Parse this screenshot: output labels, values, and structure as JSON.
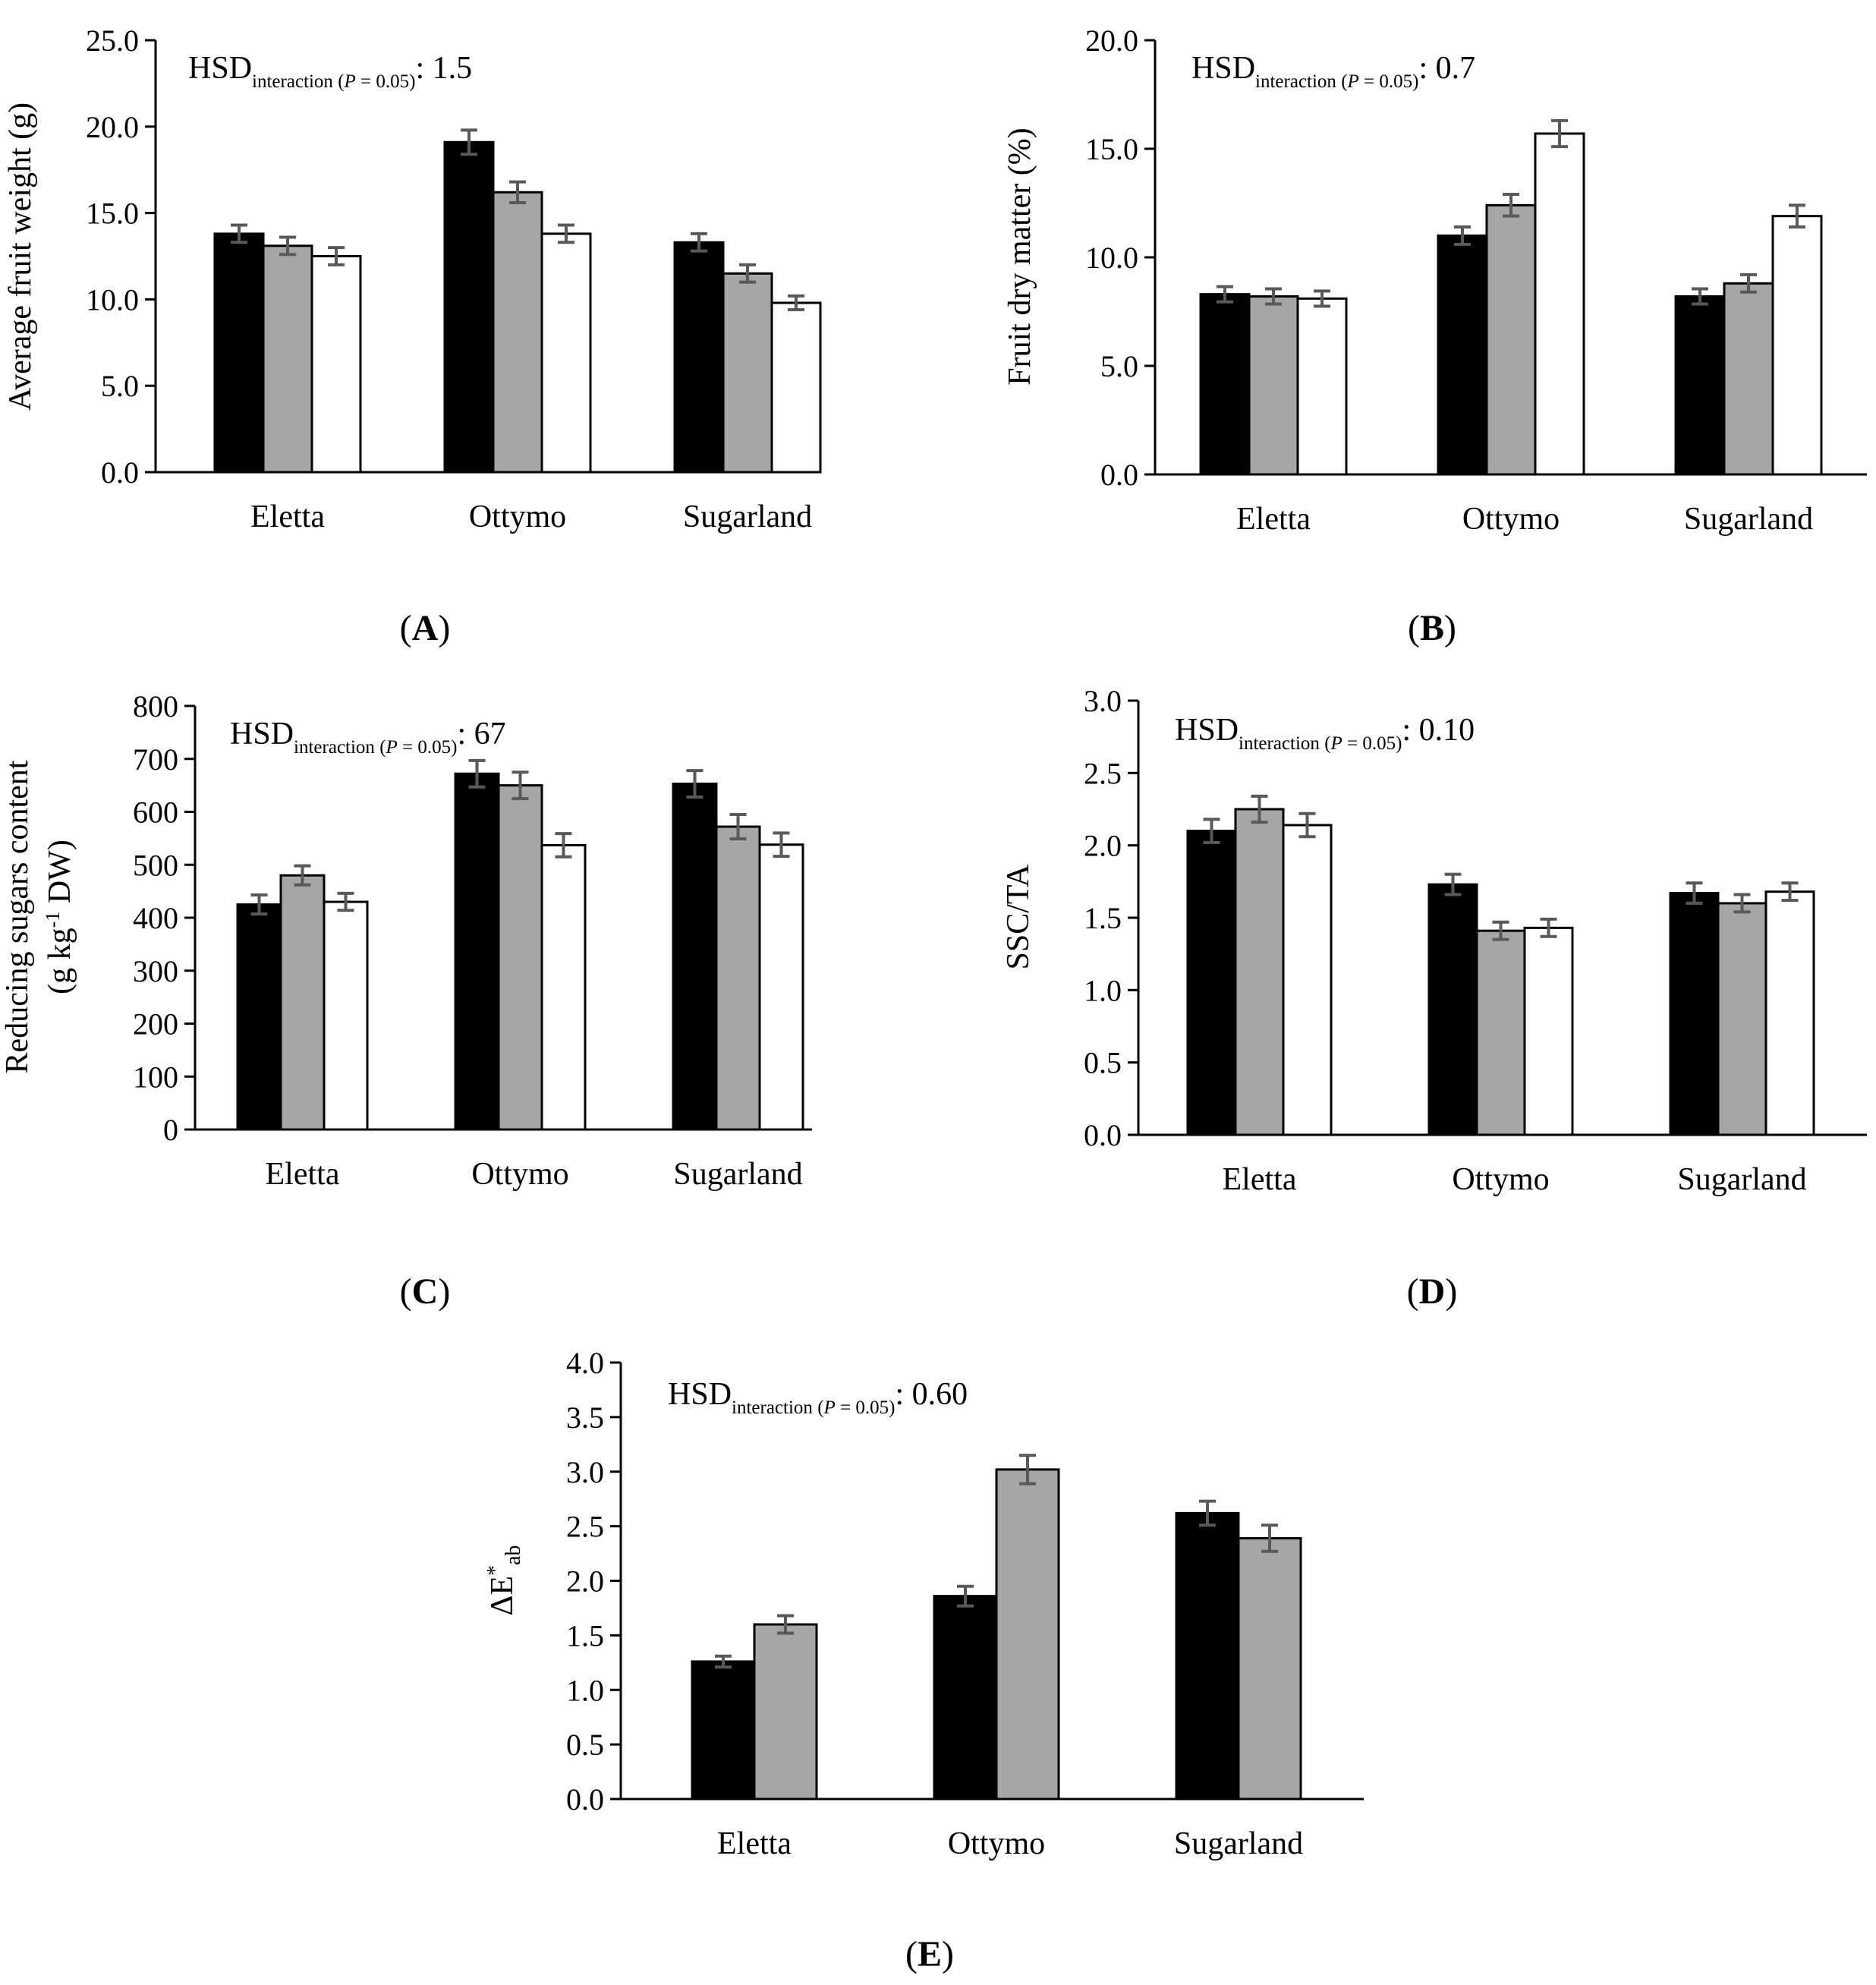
{
  "colors": {
    "series1": "#000000",
    "series2": "#a6a6a6",
    "series3": "#ffffff",
    "error": "#595959",
    "axis": "#000000"
  },
  "chart_data": [
    {
      "type": "bar",
      "panel": "A",
      "categories": [
        "Eletta",
        "Ottymo",
        "Sugarland"
      ],
      "series": [
        {
          "name": "series 1",
          "color": "#000000",
          "values": [
            13.8,
            19.1,
            13.3
          ],
          "errors": [
            0.5,
            0.7,
            0.5
          ]
        },
        {
          "name": "series 2",
          "color": "#a6a6a6",
          "values": [
            13.1,
            16.2,
            11.5
          ],
          "errors": [
            0.5,
            0.6,
            0.5
          ]
        },
        {
          "name": "series 3",
          "color": "#ffffff",
          "values": [
            12.5,
            13.8,
            9.8
          ],
          "errors": [
            0.5,
            0.5,
            0.4
          ]
        }
      ],
      "ylabel": [
        "Average fruit weight (g)"
      ],
      "ylim": [
        0,
        25
      ],
      "yticks": [
        "0.0",
        "5.0",
        "10.0",
        "15.0",
        "20.0",
        "25.0"
      ],
      "annotation": {
        "main": "HSD",
        "sub": "interaction",
        "cond_open": " (",
        "cond_p": "P",
        "cond_rest": " = 0.05)",
        "value": ": 1.5"
      }
    },
    {
      "type": "bar",
      "panel": "B",
      "categories": [
        "Eletta",
        "Ottymo",
        "Sugarland"
      ],
      "series": [
        {
          "name": "series 1",
          "color": "#000000",
          "values": [
            8.3,
            11.0,
            8.2
          ],
          "errors": [
            0.35,
            0.4,
            0.35
          ]
        },
        {
          "name": "series 2",
          "color": "#a6a6a6",
          "values": [
            8.2,
            12.4,
            8.8
          ],
          "errors": [
            0.35,
            0.5,
            0.4
          ]
        },
        {
          "name": "series 3",
          "color": "#ffffff",
          "values": [
            8.1,
            15.7,
            11.9
          ],
          "errors": [
            0.35,
            0.6,
            0.5
          ]
        }
      ],
      "ylabel": [
        "Fruit dry matter (%)"
      ],
      "ylim": [
        0,
        20
      ],
      "yticks": [
        "0.0",
        "5.0",
        "10.0",
        "15.0",
        "20.0"
      ],
      "annotation": {
        "main": "HSD",
        "sub": "interaction",
        "cond_open": " (",
        "cond_p": "P",
        "cond_rest": " = 0.05)",
        "value": ": 0.7"
      }
    },
    {
      "type": "bar",
      "panel": "C",
      "categories": [
        "Eletta",
        "Ottymo",
        "Sugarland"
      ],
      "series": [
        {
          "name": "series 1",
          "color": "#000000",
          "values": [
            425,
            672,
            653
          ],
          "errors": [
            18,
            25,
            25
          ]
        },
        {
          "name": "series 2",
          "color": "#a6a6a6",
          "values": [
            480,
            650,
            572
          ],
          "errors": [
            18,
            25,
            23
          ]
        },
        {
          "name": "series 3",
          "color": "#ffffff",
          "values": [
            430,
            537,
            538
          ],
          "errors": [
            16,
            22,
            22
          ]
        }
      ],
      "ylabel": [
        "Reducing sugars content",
        "(g kg-1 DW)"
      ],
      "ylim": [
        0,
        800
      ],
      "yticks": [
        "0",
        "100",
        "200",
        "300",
        "400",
        "500",
        "600",
        "700",
        "800"
      ],
      "annotation": {
        "main": "HSD",
        "sub": "interaction",
        "cond_open": " (",
        "cond_p": "P",
        "cond_rest": " = 0.05)",
        "value": ": 67"
      }
    },
    {
      "type": "bar",
      "panel": "D",
      "categories": [
        "Eletta",
        "Ottymo",
        "Sugarland"
      ],
      "series": [
        {
          "name": "series 1",
          "color": "#000000",
          "values": [
            2.1,
            1.73,
            1.67
          ],
          "errors": [
            0.08,
            0.07,
            0.07
          ]
        },
        {
          "name": "series 2",
          "color": "#a6a6a6",
          "values": [
            2.25,
            1.41,
            1.6
          ],
          "errors": [
            0.09,
            0.06,
            0.06
          ]
        },
        {
          "name": "series 3",
          "color": "#ffffff",
          "values": [
            2.14,
            1.43,
            1.68
          ],
          "errors": [
            0.08,
            0.06,
            0.06
          ]
        }
      ],
      "ylabel": [
        "SSC/TA"
      ],
      "ylim": [
        0,
        3
      ],
      "yticks": [
        "0.0",
        "0.5",
        "1.0",
        "1.5",
        "2.0",
        "2.5",
        "3.0"
      ],
      "annotation": {
        "main": "HSD",
        "sub": "interaction",
        "cond_open": " (",
        "cond_p": "P",
        "cond_rest": " = 0.05)",
        "value": ": 0.10"
      }
    },
    {
      "type": "bar",
      "panel": "E",
      "categories": [
        "Eletta",
        "Ottymo",
        "Sugarland"
      ],
      "series": [
        {
          "name": "series 1",
          "color": "#000000",
          "values": [
            1.26,
            1.86,
            2.62
          ],
          "errors": [
            0.05,
            0.09,
            0.11
          ]
        },
        {
          "name": "series 2",
          "color": "#a6a6a6",
          "values": [
            1.6,
            3.02,
            2.39
          ],
          "errors": [
            0.08,
            0.13,
            0.12
          ]
        }
      ],
      "ylabel": [
        "ΔE*ab"
      ],
      "ylim": [
        0,
        4
      ],
      "yticks": [
        "0.0",
        "0.5",
        "1.0",
        "1.5",
        "2.0",
        "2.5",
        "3.0",
        "3.5",
        "4.0"
      ],
      "annotation": {
        "main": "HSD",
        "sub": "interaction",
        "cond_open": " (",
        "cond_p": "P",
        "cond_rest": " = 0.05)",
        "value": ": 0.60"
      }
    }
  ]
}
